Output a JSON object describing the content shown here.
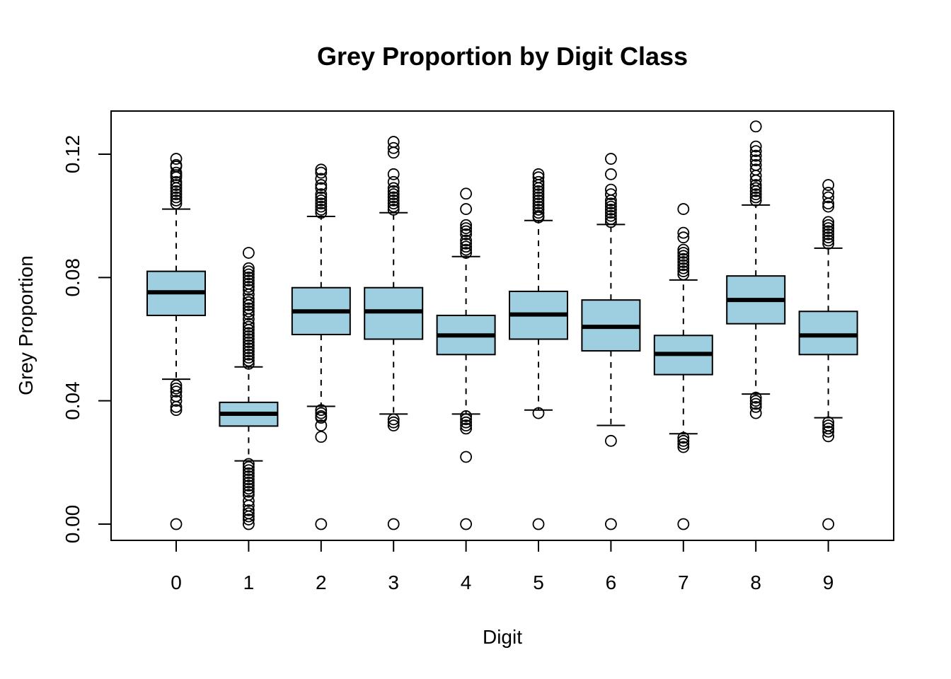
{
  "chart_data": {
    "type": "boxplot",
    "title": "Grey Proportion by Digit Class",
    "xlabel": "Digit",
    "ylabel": "Grey Proportion",
    "categories": [
      "0",
      "1",
      "2",
      "3",
      "4",
      "5",
      "6",
      "7",
      "8",
      "9"
    ],
    "ylim": [
      -0.005,
      0.135
    ],
    "yticks": [
      0.0,
      0.04,
      0.08,
      0.12
    ],
    "ytick_labels": [
      "0.00",
      "0.04",
      "0.08",
      "0.12"
    ],
    "box_fill": "#9ecfe0",
    "grid": false,
    "legend": "none",
    "boxes": [
      {
        "label": "0",
        "whisker_low": 0.047,
        "q1": 0.0677,
        "median": 0.0752,
        "q3": 0.082,
        "whisker_high": 0.1022,
        "outliers": [
          0.1185,
          0.1165,
          0.116,
          0.114,
          0.1132,
          0.1125,
          0.111,
          0.11,
          0.109,
          0.108,
          0.107,
          0.106,
          0.105,
          0.104,
          0.045,
          0.044,
          0.043,
          0.0415,
          0.04,
          0.038,
          0.037,
          0.0
        ]
      },
      {
        "label": "1",
        "whisker_low": 0.0205,
        "q1": 0.0318,
        "median": 0.0358,
        "q3": 0.0395,
        "whisker_high": 0.051,
        "outliers": [
          0.088,
          0.083,
          0.082,
          0.081,
          0.08,
          0.079,
          0.078,
          0.077,
          0.076,
          0.0745,
          0.073,
          0.072,
          0.071,
          0.07,
          0.069,
          0.068,
          0.0665,
          0.065,
          0.064,
          0.063,
          0.062,
          0.061,
          0.06,
          0.059,
          0.058,
          0.057,
          0.056,
          0.055,
          0.054,
          0.053,
          0.052,
          0.0195,
          0.0185,
          0.0175,
          0.0165,
          0.0155,
          0.0145,
          0.0135,
          0.0125,
          0.0115,
          0.0105,
          0.0095,
          0.0075,
          0.006,
          0.0045,
          0.0035,
          0.0025,
          0.0015,
          0.0
        ]
      },
      {
        "label": "2",
        "whisker_low": 0.0382,
        "q1": 0.0615,
        "median": 0.069,
        "q3": 0.0767,
        "whisker_high": 0.0998,
        "outliers": [
          0.115,
          0.114,
          0.112,
          0.11,
          0.109,
          0.107,
          0.106,
          0.105,
          0.104,
          0.103,
          0.102,
          0.101,
          0.037,
          0.036,
          0.035,
          0.0345,
          0.032,
          0.0283,
          0.0
        ]
      },
      {
        "label": "3",
        "whisker_low": 0.0357,
        "q1": 0.06,
        "median": 0.069,
        "q3": 0.0767,
        "whisker_high": 0.101,
        "outliers": [
          0.124,
          0.122,
          0.1205,
          0.1135,
          0.111,
          0.109,
          0.108,
          0.107,
          0.106,
          0.105,
          0.104,
          0.103,
          0.102,
          0.034,
          0.033,
          0.032,
          0.0
        ]
      },
      {
        "label": "4",
        "whisker_low": 0.0357,
        "q1": 0.055,
        "median": 0.0612,
        "q3": 0.0677,
        "whisker_high": 0.0868,
        "outliers": [
          0.1072,
          0.1022,
          0.097,
          0.096,
          0.095,
          0.094,
          0.092,
          0.091,
          0.09,
          0.089,
          0.088,
          0.035,
          0.034,
          0.033,
          0.032,
          0.031,
          0.0218,
          0.0
        ]
      },
      {
        "label": "5",
        "whisker_low": 0.037,
        "q1": 0.06,
        "median": 0.068,
        "q3": 0.0755,
        "whisker_high": 0.0985,
        "outliers": [
          0.1135,
          0.1125,
          0.111,
          0.11,
          0.109,
          0.108,
          0.107,
          0.106,
          0.105,
          0.104,
          0.103,
          0.102,
          0.101,
          0.1,
          0.0995,
          0.036,
          0.0
        ]
      },
      {
        "label": "6",
        "whisker_low": 0.032,
        "q1": 0.0562,
        "median": 0.064,
        "q3": 0.0727,
        "whisker_high": 0.0972,
        "outliers": [
          0.1185,
          0.1135,
          0.1085,
          0.107,
          0.105,
          0.104,
          0.103,
          0.102,
          0.101,
          0.1,
          0.099,
          0.098,
          0.027,
          0.0
        ]
      },
      {
        "label": "7",
        "whisker_low": 0.0293,
        "q1": 0.0485,
        "median": 0.0552,
        "q3": 0.0612,
        "whisker_high": 0.0792,
        "outliers": [
          0.1022,
          0.0945,
          0.093,
          0.089,
          0.088,
          0.087,
          0.086,
          0.085,
          0.084,
          0.083,
          0.082,
          0.081,
          0.028,
          0.027,
          0.026,
          0.025,
          0.0
        ]
      },
      {
        "label": "8",
        "whisker_low": 0.0422,
        "q1": 0.065,
        "median": 0.0727,
        "q3": 0.0805,
        "whisker_high": 0.1035,
        "outliers": [
          0.129,
          0.1225,
          0.121,
          0.1195,
          0.118,
          0.1165,
          0.115,
          0.113,
          0.1115,
          0.11,
          0.109,
          0.108,
          0.107,
          0.106,
          0.105,
          0.041,
          0.04,
          0.039,
          0.038,
          0.036
        ]
      },
      {
        "label": "9",
        "whisker_low": 0.0345,
        "q1": 0.055,
        "median": 0.0612,
        "q3": 0.069,
        "whisker_high": 0.0895,
        "outliers": [
          0.11,
          0.1075,
          0.106,
          0.104,
          0.103,
          0.098,
          0.097,
          0.096,
          0.095,
          0.094,
          0.093,
          0.092,
          0.091,
          0.033,
          0.032,
          0.031,
          0.03,
          0.0285,
          0.0
        ]
      }
    ]
  }
}
